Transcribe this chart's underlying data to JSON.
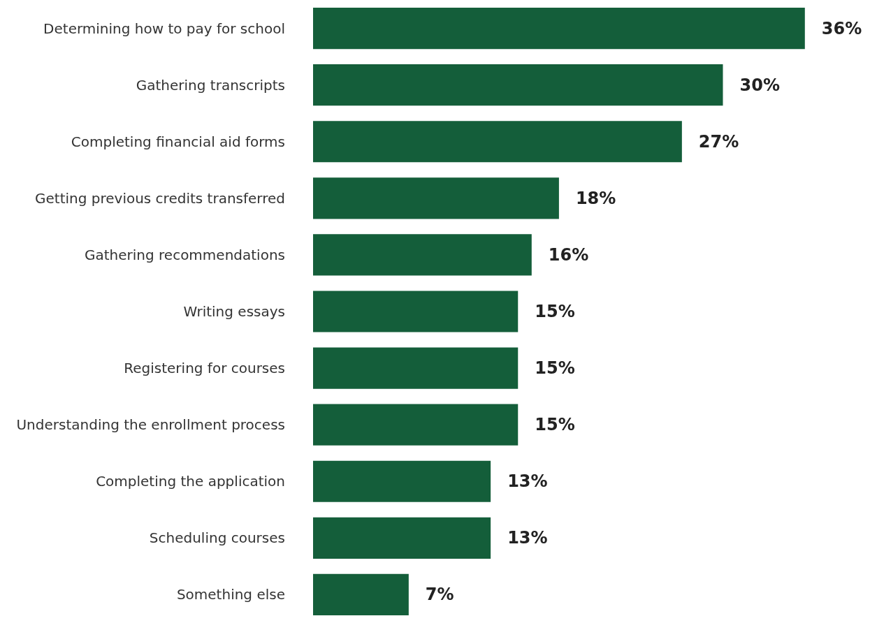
{
  "chart_data": {
    "type": "bar",
    "orientation": "horizontal",
    "categories": [
      "Determining how to pay for school",
      "Gathering transcripts",
      "Completing financial aid forms",
      "Getting previous credits transferred",
      "Gathering recommendations",
      "Writing essays",
      "Registering for courses",
      "Understanding the enrollment process",
      "Completing the application",
      "Scheduling courses",
      "Something else"
    ],
    "values": [
      36,
      30,
      27,
      18,
      16,
      15,
      15,
      15,
      13,
      13,
      7
    ],
    "value_labels": [
      "36%",
      "30%",
      "27%",
      "18%",
      "16%",
      "15%",
      "15%",
      "15%",
      "13%",
      "13%",
      "7%"
    ],
    "color": "#145e3a"
  }
}
